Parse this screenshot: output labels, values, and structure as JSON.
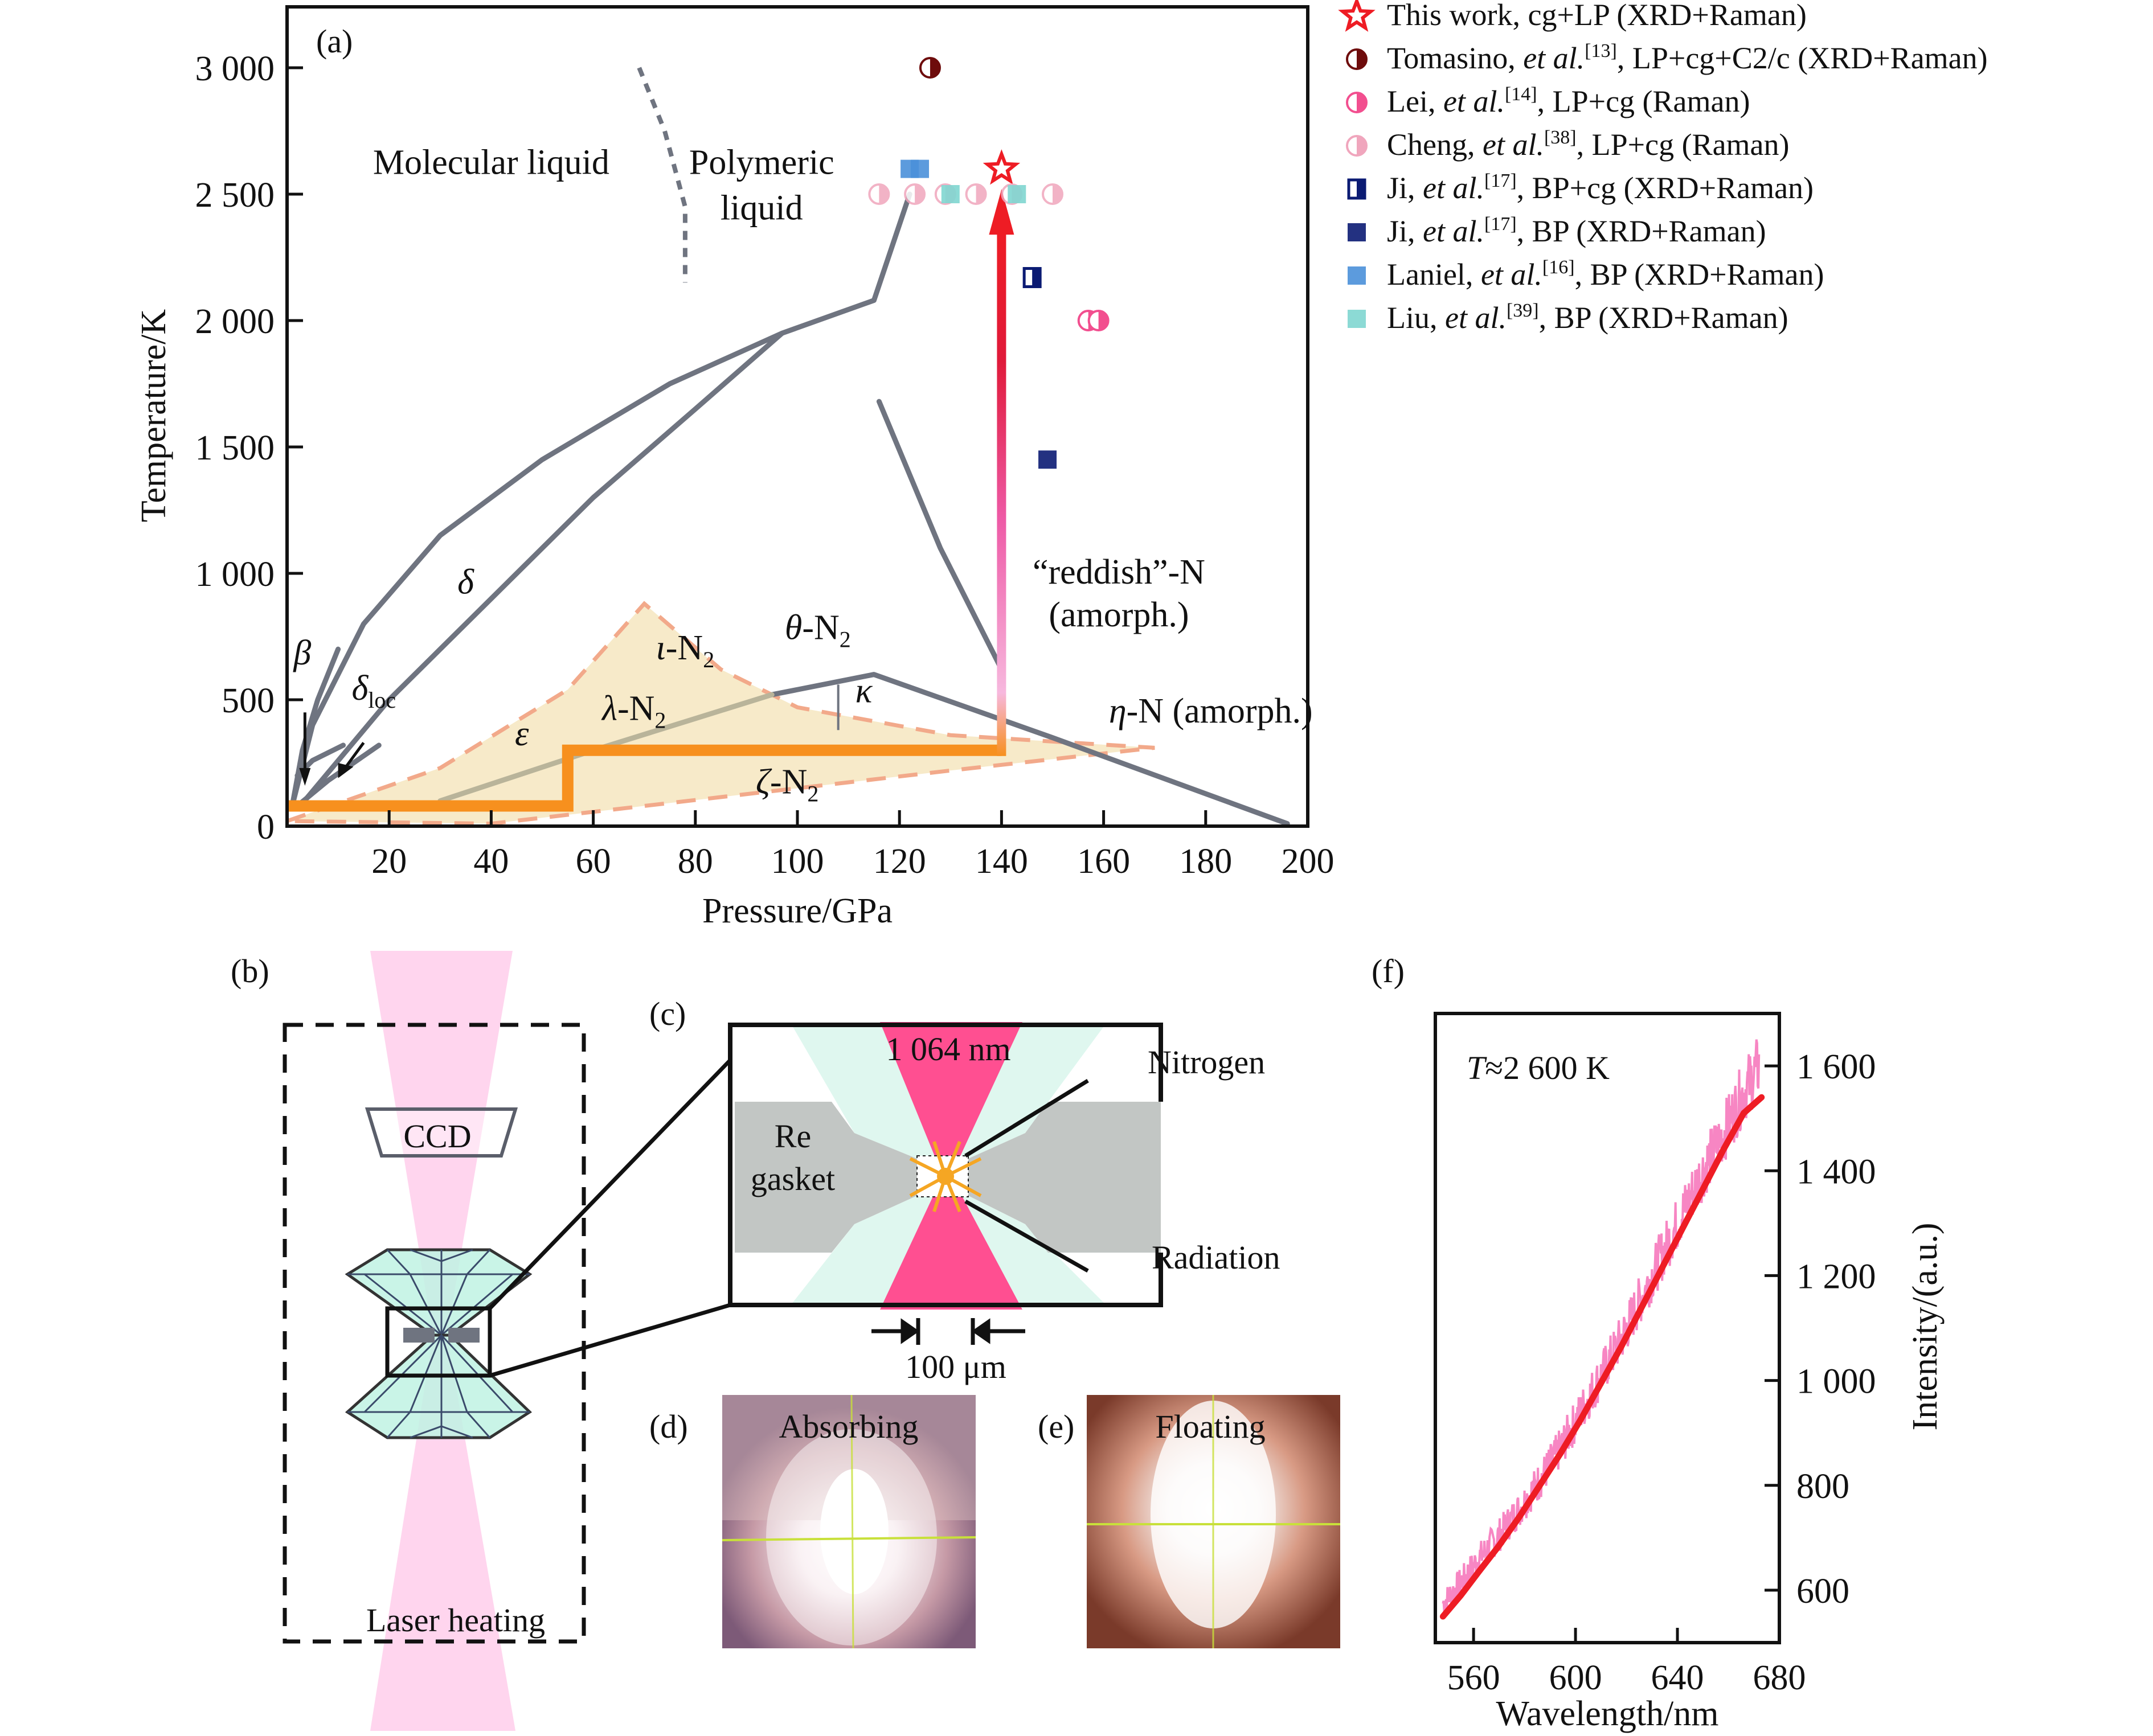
{
  "figure": {
    "panels": {
      "a": "(a)",
      "b": "(b)",
      "c": "(c)",
      "d": "(d)",
      "e": "(e)",
      "f": "(f)"
    }
  },
  "colors": {
    "phase_line": "#6f7480",
    "orange_path": "#f7901e",
    "region_fill": "#f6e6bf",
    "region_dash": "#f2a98a",
    "arrow_top": "#ee1c24",
    "arrow_bottom": "#f7b8de",
    "laser_pink": "#ff4f91",
    "diamond_fill": "#bff2e3",
    "gasket": "#c2c6c4",
    "spectrum": "#f780c0",
    "fit": "#ee1c24"
  },
  "chart_data": [
    {
      "id": "phase-diagram",
      "type": "scatter",
      "title": "",
      "xlabel": "Pressure/GPa",
      "ylabel": "Temperature/K",
      "xlim": [
        0,
        200
      ],
      "ylim": [
        0,
        3200
      ],
      "x_ticks": [
        20,
        40,
        60,
        80,
        100,
        120,
        140,
        160,
        180,
        200
      ],
      "x_tick_labels": [
        "20",
        "40",
        "60",
        "80",
        "100",
        "120",
        "140",
        "160",
        "180",
        "200"
      ],
      "y_ticks": [
        0,
        500,
        1000,
        1500,
        2000,
        2500,
        3000
      ],
      "y_tick_labels": [
        "0",
        "500",
        "1 000",
        "1 500",
        "2 000",
        "2 500",
        "3 000"
      ],
      "grid": false,
      "legend_position": "outside-right",
      "region_labels": [
        {
          "text": "Molecular liquid",
          "x": 40,
          "y": 2580
        },
        {
          "text": "Polymeric",
          "x": 93,
          "y": 2580
        },
        {
          "text": "liquid",
          "x": 93,
          "y": 2400
        },
        {
          "text": "δ",
          "x": 35,
          "y": 920,
          "italic": true
        },
        {
          "text": "β",
          "x": 3,
          "y": 640,
          "italic": true
        },
        {
          "text": "δloc",
          "x": 17,
          "y": 500,
          "italic": true
        },
        {
          "text": "ε",
          "x": 46,
          "y": 320,
          "italic": true
        },
        {
          "text": "ι-N2",
          "x": 78,
          "y": 660
        },
        {
          "text": "λ-N2",
          "x": 68,
          "y": 420
        },
        {
          "text": "θ-N2",
          "x": 104,
          "y": 740
        },
        {
          "text": "κ",
          "x": 113,
          "y": 490,
          "italic": true
        },
        {
          "text": "ζ-N2",
          "x": 98,
          "y": 130
        },
        {
          "text": "“reddish”-N",
          "x": 163,
          "y": 960
        },
        {
          "text": "(amorph.)",
          "x": 163,
          "y": 790
        },
        {
          "text": "η-N (amorph.)",
          "x": 181,
          "y": 410
        }
      ],
      "phase_boundaries": [
        {
          "name": "melting-curve",
          "points": [
            [
              1,
              80
            ],
            [
              5,
              400
            ],
            [
              15,
              800
            ],
            [
              30,
              1150
            ],
            [
              50,
              1450
            ],
            [
              75,
              1750
            ],
            [
              97,
              1950
            ],
            [
              115,
              2080
            ],
            [
              122,
              2500
            ]
          ]
        },
        {
          "name": "delta-epsilon",
          "points": [
            [
              3,
              90
            ],
            [
              20,
              500
            ],
            [
              40,
              900
            ],
            [
              60,
              1300
            ],
            [
              80,
              1650
            ],
            [
              97,
              1950
            ]
          ]
        },
        {
          "name": "beta-boundary",
          "points": [
            [
              1,
              80
            ],
            [
              3,
              300
            ],
            [
              6,
              500
            ],
            [
              10,
              700
            ]
          ]
        },
        {
          "name": "beta-short",
          "points": [
            [
              2,
              200
            ],
            [
              5,
              260
            ],
            [
              11,
              320
            ]
          ]
        },
        {
          "name": "delta-loc",
          "points": [
            [
              2,
              80
            ],
            [
              8,
              180
            ],
            [
              18,
              320
            ]
          ]
        },
        {
          "name": "theta-reddish",
          "points": [
            [
              116,
              1680
            ],
            [
              128,
              1100
            ],
            [
              140,
              620
            ]
          ]
        },
        {
          "name": "theta-eta",
          "points": [
            [
              95,
              520
            ],
            [
              115,
              600
            ],
            [
              150,
              350
            ],
            [
              196,
              10
            ]
          ]
        },
        {
          "name": "lambda-line",
          "points": [
            [
              30,
              100
            ],
            [
              60,
              300
            ],
            [
              95,
              520
            ]
          ]
        }
      ],
      "liquid_liquid_boundary": {
        "style": "dashed",
        "points": [
          [
            69,
            3000
          ],
          [
            74,
            2750
          ],
          [
            78,
            2450
          ],
          [
            78,
            2150
          ]
        ]
      },
      "metastable_region": {
        "style": "dashed-filled",
        "points": [
          [
            0,
            20
          ],
          [
            30,
            230
          ],
          [
            55,
            540
          ],
          [
            70,
            880
          ],
          [
            85,
            620
          ],
          [
            100,
            470
          ],
          [
            130,
            360
          ],
          [
            170,
            310
          ],
          [
            130,
            220
          ],
          [
            70,
            80
          ],
          [
            40,
            10
          ],
          [
            0,
            20
          ]
        ]
      },
      "kappa_tick": {
        "x": 108,
        "y": [
          380,
          560
        ]
      },
      "experimental_path": {
        "points": [
          [
            0,
            80
          ],
          [
            55,
            80
          ],
          [
            55,
            300
          ],
          [
            140,
            300
          ],
          [
            140,
            2520
          ]
        ],
        "arrow_end": [
          140,
          2520
        ]
      },
      "series": [
        {
          "name": "This work, cg+LP (XRD+Raman)",
          "marker": "star",
          "color": "#ee1c24",
          "points": [
            [
              140,
              2600
            ]
          ]
        },
        {
          "name": "Tomasino, et al.[13], LP+cg+C2/c (XRD+Raman)",
          "marker": "half-circle",
          "color": "#6e0c0c",
          "points": [
            [
              126,
              3000
            ]
          ]
        },
        {
          "name": "Lei, et al.[14], LP+cg (Raman)",
          "marker": "half-circle",
          "color": "#f24f8f",
          "points": [
            [
              157,
              2000
            ],
            [
              159,
              2000
            ]
          ]
        },
        {
          "name": "Cheng, et al.[38], LP+cg (Raman)",
          "marker": "half-circle",
          "color": "#f0a6bd",
          "points": [
            [
              116,
              2500
            ],
            [
              123,
              2500
            ],
            [
              129,
              2500
            ],
            [
              135,
              2500
            ],
            [
              142,
              2500
            ],
            [
              150,
              2500
            ]
          ]
        },
        {
          "name": "Ji, et al.[17], BP+cg (XRD+Raman)",
          "marker": "half-square",
          "color": "#0b1b73",
          "points": [
            [
              146,
              2170
            ]
          ]
        },
        {
          "name": "Ji, et al.[17], BP (XRD+Raman)",
          "marker": "square",
          "color": "#0b1b73",
          "points": [
            [
              149,
              1450
            ]
          ]
        },
        {
          "name": "Laniel, et al.[16], BP (XRD+Raman)",
          "marker": "square",
          "color": "#4a90d9",
          "points": [
            [
              122,
              2600
            ],
            [
              124,
              2600
            ]
          ]
        },
        {
          "name": "Liu, et al.[39], BP (XRD+Raman)",
          "marker": "square",
          "color": "#7fd6d0",
          "points": [
            [
              130,
              2500
            ],
            [
              143,
              2500
            ]
          ]
        }
      ]
    },
    {
      "id": "radiation-spectrum",
      "type": "line",
      "title": "",
      "xlabel": "Wavelength/nm",
      "ylabel": "Intensity/(a.u.)",
      "xlim": [
        545,
        680
      ],
      "ylim": [
        500,
        1700
      ],
      "x_ticks": [
        560,
        600,
        640,
        680
      ],
      "x_tick_labels": [
        "560",
        "600",
        "640",
        "680"
      ],
      "y_ticks": [
        600,
        800,
        1000,
        1200,
        1400,
        1600
      ],
      "y_tick_labels": [
        "600",
        "800",
        "1 000",
        "1 200",
        "1 400",
        "1 600"
      ],
      "y_axis_side": "right",
      "annotation": "T≈2 600 K",
      "series": [
        {
          "name": "measured",
          "color": "#f780c0",
          "style": "noisy",
          "x": [
            548,
            555,
            562,
            570,
            578,
            586,
            594,
            602,
            610,
            618,
            626,
            634,
            642,
            650,
            658,
            666,
            672
          ],
          "y": [
            575,
            615,
            660,
            705,
            755,
            810,
            870,
            940,
            1010,
            1080,
            1160,
            1240,
            1320,
            1400,
            1470,
            1550,
            1600
          ],
          "noise_amplitude": 45
        },
        {
          "name": "fit",
          "color": "#ee1c24",
          "style": "smooth",
          "x": [
            548,
            555,
            562,
            570,
            578,
            586,
            594,
            602,
            610,
            618,
            626,
            634,
            642,
            650,
            658,
            666,
            673
          ],
          "y": [
            550,
            590,
            635,
            685,
            740,
            800,
            860,
            925,
            995,
            1065,
            1140,
            1215,
            1290,
            1365,
            1440,
            1510,
            1540
          ]
        }
      ]
    }
  ],
  "schematic_b": {
    "ccd_label": "CCD",
    "laser_label": "Laser heating"
  },
  "schematic_c": {
    "wavelength_label": "1 064 nm",
    "gasket_label_1": "Re",
    "gasket_label_2": "gasket",
    "nitrogen_label": "Nitrogen",
    "radiation_label": "Radiation",
    "scale_label": "100 μm"
  },
  "photos": {
    "d_label": "Absorbing",
    "e_label": "Floating"
  }
}
